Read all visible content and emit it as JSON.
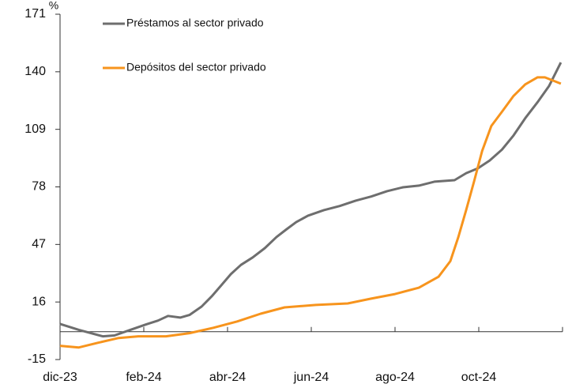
{
  "chart_data": {
    "type": "line",
    "y_label": "%",
    "xlim": [
      0,
      12
    ],
    "xticks": [
      {
        "value": 0,
        "label": "dic-23"
      },
      {
        "value": 2,
        "label": "feb-24"
      },
      {
        "value": 4,
        "label": "abr-24"
      },
      {
        "value": 6,
        "label": "jun-24"
      },
      {
        "value": 8,
        "label": "ago-24"
      },
      {
        "value": 10,
        "label": "oct-24"
      }
    ],
    "ylim": [
      -15,
      171
    ],
    "yticks": [
      -15,
      16,
      47,
      78,
      109,
      140,
      171
    ],
    "legend": "upper left",
    "series": [
      {
        "name": "Préstamos al sector privado",
        "color": "#6e6e6e",
        "x": [
          0,
          0.45,
          1.02,
          1.3,
          1.68,
          2.06,
          2.34,
          2.58,
          2.87,
          3.09,
          3.38,
          3.62,
          3.85,
          4.08,
          4.32,
          4.6,
          4.89,
          5.17,
          5.4,
          5.64,
          5.92,
          6.3,
          6.68,
          7.06,
          7.43,
          7.81,
          8.19,
          8.57,
          8.94,
          9.42,
          9.7,
          9.98,
          10.26,
          10.55,
          10.83,
          11.11,
          11.4,
          11.68,
          11.96
        ],
        "values": [
          4.2,
          1,
          -2.5,
          -2,
          1,
          4,
          6,
          8.5,
          7.6,
          9,
          13.5,
          19,
          25,
          31,
          36,
          40,
          45,
          51,
          55,
          59,
          62.5,
          65.5,
          67.7,
          70.6,
          72.8,
          75.7,
          77.8,
          78.7,
          80.8,
          81.6,
          85.4,
          88,
          92.2,
          98,
          105.7,
          115,
          123.5,
          132.4,
          145
        ]
      },
      {
        "name": "Depósitos del sector privado",
        "color": "#f7941d",
        "x": [
          0,
          0.45,
          0.92,
          1.4,
          1.87,
          2.53,
          3.09,
          3.66,
          4.23,
          4.79,
          5.36,
          6.11,
          6.87,
          7.43,
          8.0,
          8.57,
          9.04,
          9.32,
          9.51,
          9.7,
          9.89,
          10.08,
          10.3,
          10.55,
          10.83,
          11.11,
          11.4,
          11.58,
          11.77,
          11.96
        ],
        "values": [
          -7.6,
          -8.5,
          -5.9,
          -3.4,
          -2.5,
          -2.5,
          -0.8,
          2.1,
          5.5,
          9.7,
          13.1,
          14.4,
          15.2,
          17.8,
          20.3,
          23.7,
          29.6,
          38,
          50.8,
          65.6,
          81.2,
          97.3,
          110.8,
          118.4,
          127,
          133.2,
          137,
          137,
          135.3,
          133.6
        ]
      }
    ]
  }
}
